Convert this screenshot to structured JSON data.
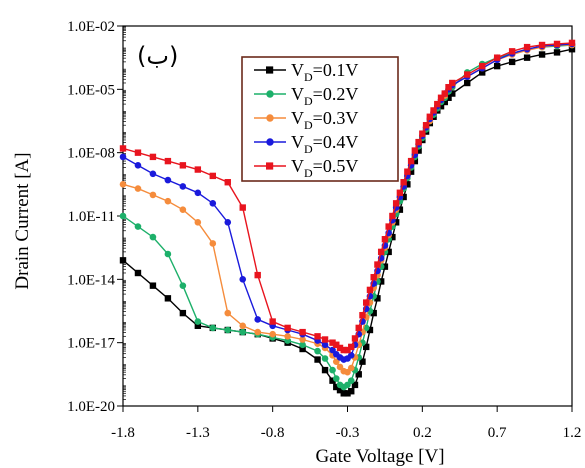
{
  "chart_data": {
    "type": "line",
    "panel_label": "(ب)",
    "xlabel": "Gate Voltage [V]",
    "ylabel": "Drain Current [A]",
    "xlim": [
      -1.8,
      1.2
    ],
    "ylim_log10": [
      -20,
      -2
    ],
    "y_scale": "log",
    "x_ticks": [
      "-1.8",
      "-1.3",
      "-0.8",
      "-0.3",
      "0.2",
      "0.7",
      "1.2"
    ],
    "y_ticks": [
      "1.0E-20",
      "1.0E-17",
      "1.0E-14",
      "1.0E-11",
      "1.0E-08",
      "1.0E-05",
      "1.0E-02"
    ],
    "legend_position": "top-center",
    "grid": false,
    "x": [
      -1.8,
      -1.7,
      -1.6,
      -1.5,
      -1.4,
      -1.3,
      -1.2,
      -1.1,
      -1.0,
      -0.9,
      -0.8,
      -0.7,
      -0.6,
      -0.5,
      -0.45,
      -0.4,
      -0.375,
      -0.35,
      -0.325,
      -0.3,
      -0.275,
      -0.25,
      -0.225,
      -0.2,
      -0.175,
      -0.15,
      -0.125,
      -0.1,
      -0.075,
      -0.05,
      -0.025,
      0.0,
      0.025,
      0.05,
      0.075,
      0.1,
      0.125,
      0.15,
      0.175,
      0.2,
      0.225,
      0.25,
      0.275,
      0.3,
      0.325,
      0.35,
      0.375,
      0.4,
      0.5,
      0.6,
      0.7,
      0.8,
      0.9,
      1.0,
      1.1,
      1.2
    ],
    "series": [
      {
        "name": "VD=0.1V",
        "name_main": "V",
        "name_sub": "D",
        "name_rest": "=0.1V",
        "color": "#000000",
        "marker": "square",
        "log10_values": [
          -13.1,
          -13.7,
          -14.3,
          -14.9,
          -15.6,
          -16.2,
          -16.3,
          -16.4,
          -16.5,
          -16.6,
          -16.8,
          -17.0,
          -17.3,
          -17.8,
          -18.3,
          -18.8,
          -19.1,
          -19.25,
          -19.4,
          -19.4,
          -19.3,
          -19.0,
          -18.5,
          -17.9,
          -17.2,
          -16.4,
          -15.6,
          -14.9,
          -14.1,
          -13.4,
          -12.7,
          -12.0,
          -11.3,
          -10.7,
          -10.1,
          -9.5,
          -8.9,
          -8.4,
          -7.9,
          -7.4,
          -7.0,
          -6.6,
          -6.3,
          -6.0,
          -5.8,
          -5.6,
          -5.4,
          -5.2,
          -4.7,
          -4.2,
          -3.9,
          -3.7,
          -3.5,
          -3.35,
          -3.25,
          -3.1
        ]
      },
      {
        "name": "VD=0.2V",
        "name_main": "V",
        "name_sub": "D",
        "name_rest": "=0.2V",
        "color": "#1db06a",
        "marker": "circle",
        "log10_values": [
          -11.0,
          -11.5,
          -12.0,
          -12.8,
          -14.3,
          -16.0,
          -16.3,
          -16.4,
          -16.5,
          -16.6,
          -16.75,
          -16.9,
          -17.1,
          -17.4,
          -17.75,
          -18.3,
          -18.7,
          -19.0,
          -19.1,
          -19.0,
          -18.8,
          -18.3,
          -17.7,
          -17.0,
          -16.3,
          -15.5,
          -14.8,
          -14.1,
          -13.4,
          -12.7,
          -12.1,
          -11.5,
          -10.9,
          -10.3,
          -9.7,
          -9.2,
          -8.7,
          -8.2,
          -7.7,
          -7.3,
          -6.9,
          -6.5,
          -6.2,
          -5.9,
          -5.6,
          -5.4,
          -5.1,
          -4.9,
          -4.2,
          -3.8,
          -3.5,
          -3.3,
          -3.1,
          -3.0,
          -2.95,
          -2.9
        ]
      },
      {
        "name": "VD=0.3V",
        "name_main": "V",
        "name_sub": "D",
        "name_rest": "=0.3V",
        "color": "#f58c3c",
        "marker": "circle",
        "log10_values": [
          -9.5,
          -9.7,
          -10.0,
          -10.3,
          -10.7,
          -11.3,
          -12.3,
          -15.6,
          -16.2,
          -16.5,
          -16.6,
          -16.7,
          -16.85,
          -17.05,
          -17.25,
          -17.6,
          -17.9,
          -18.15,
          -18.35,
          -18.4,
          -18.2,
          -17.7,
          -17.1,
          -16.5,
          -15.8,
          -15.1,
          -14.4,
          -13.8,
          -13.1,
          -12.5,
          -11.9,
          -11.3,
          -10.7,
          -10.1,
          -9.6,
          -9.1,
          -8.6,
          -8.1,
          -7.6,
          -7.2,
          -6.8,
          -6.5,
          -6.1,
          -5.8,
          -5.5,
          -5.3,
          -5.0,
          -4.8,
          -4.4,
          -4.0,
          -3.6,
          -3.35,
          -3.15,
          -3.0,
          -2.9,
          -2.9
        ]
      },
      {
        "name": "VD=0.4V",
        "name_main": "V",
        "name_sub": "D",
        "name_rest": "=0.4V",
        "color": "#1a1adc",
        "marker": "circle",
        "log10_values": [
          -8.2,
          -8.6,
          -9.0,
          -9.3,
          -9.6,
          -9.9,
          -10.4,
          -11.3,
          -14.0,
          -15.9,
          -16.2,
          -16.4,
          -16.6,
          -16.9,
          -17.1,
          -17.35,
          -17.55,
          -17.7,
          -17.8,
          -17.75,
          -17.6,
          -17.1,
          -16.6,
          -16.0,
          -15.4,
          -14.8,
          -14.2,
          -13.6,
          -13.0,
          -12.4,
          -11.8,
          -11.2,
          -10.6,
          -10.1,
          -9.6,
          -9.1,
          -8.6,
          -8.1,
          -7.6,
          -7.2,
          -6.8,
          -6.4,
          -6.1,
          -5.8,
          -5.5,
          -5.2,
          -5.0,
          -4.8,
          -4.4,
          -4.0,
          -3.6,
          -3.3,
          -3.1,
          -2.95,
          -2.9,
          -2.85
        ]
      },
      {
        "name": "VD=0.5V",
        "name_main": "V",
        "name_sub": "D",
        "name_rest": "=0.5V",
        "color": "#e8141e",
        "marker": "square",
        "log10_values": [
          -7.8,
          -8.0,
          -8.2,
          -8.4,
          -8.6,
          -8.8,
          -9.1,
          -9.4,
          -10.6,
          -13.8,
          -16.0,
          -16.3,
          -16.5,
          -16.7,
          -16.85,
          -17.0,
          -17.1,
          -17.25,
          -17.35,
          -17.35,
          -17.2,
          -16.8,
          -16.3,
          -15.7,
          -15.1,
          -14.5,
          -13.9,
          -13.3,
          -12.7,
          -12.1,
          -11.5,
          -11.0,
          -10.4,
          -9.9,
          -9.4,
          -8.9,
          -8.4,
          -7.9,
          -7.5,
          -7.1,
          -6.7,
          -6.3,
          -6.0,
          -5.7,
          -5.4,
          -5.2,
          -4.9,
          -4.7,
          -4.3,
          -3.9,
          -3.5,
          -3.2,
          -3.0,
          -2.9,
          -2.85,
          -2.8
        ]
      }
    ]
  }
}
